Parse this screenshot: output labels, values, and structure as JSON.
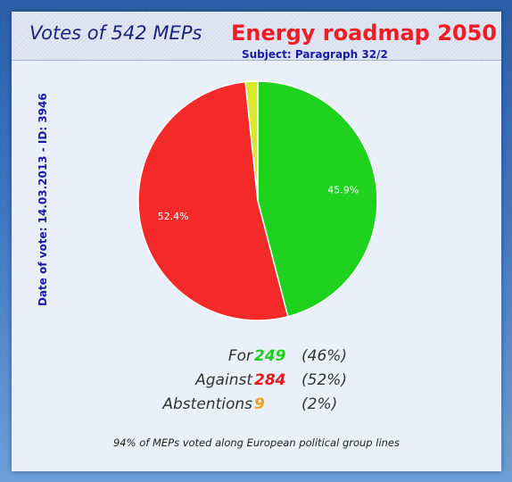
{
  "header": {
    "votes_title": "Votes of 542 MEPs",
    "main_title": "Energy roadmap 2050",
    "subject": "Subject: Paragraph 32/2"
  },
  "side_label": "Date of vote: 14.03.2013 - ID: 3946",
  "chart_data": {
    "type": "pie",
    "title": "Energy roadmap 2050",
    "slices": [
      {
        "label": "For",
        "value": 249,
        "percent_label": "45.9%",
        "color": "#1ed21e"
      },
      {
        "label": "Against",
        "value": 284,
        "percent_label": "52.4%",
        "color": "#f42a2a"
      },
      {
        "label": "Abstentions",
        "value": 9,
        "percent_label": "",
        "color": "#d8e82a"
      }
    ]
  },
  "legend": {
    "rows": [
      {
        "name": "For",
        "count": "249",
        "pct": "(46%)",
        "color": "#22cc22"
      },
      {
        "name": "Against",
        "count": "284",
        "pct": "(52%)",
        "color": "#e8161c"
      },
      {
        "name": "Abstentions",
        "count": "9",
        "pct": "(2%)",
        "color": "#f0a020"
      }
    ]
  },
  "footer": "94% of MEPs voted along European political group lines"
}
